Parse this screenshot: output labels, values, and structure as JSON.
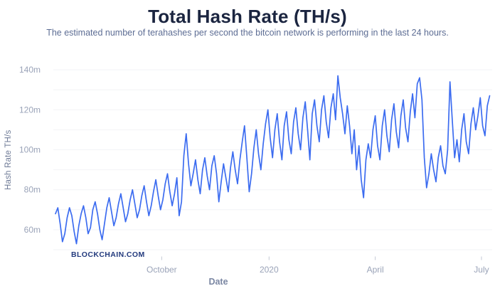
{
  "page": {
    "watermark": "BLOCKCHAIN.COM"
  },
  "colors": {
    "title": "#1b2540",
    "subtitle": "#5d6d94",
    "axis_tick_labels": "#9aa3b8",
    "axis_titles": "#7b87a3",
    "gridline": "#f2f3f6",
    "tick_mark": "#c3c8d4",
    "line": "#3c6cf0",
    "watermark": "#233a7d",
    "background": "#ffffff"
  },
  "chart_data": {
    "type": "line",
    "title": "Total Hash Rate (TH/s)",
    "subtitle": "The estimated number of terahashes per second the bitcoin network is performing in the last 24 hours.",
    "xlabel": "Date",
    "ylabel": "Hash Rate TH/s",
    "legend": "none",
    "grid": true,
    "line_color": "#3c6cf0",
    "y_axis": {
      "min": 50,
      "max": 145,
      "gridline_step": 10,
      "tick_values": [
        60,
        80,
        100,
        120,
        140
      ],
      "tick_labels": [
        "60m",
        "80m",
        "100m",
        "120m",
        "140m"
      ]
    },
    "x_axis": {
      "tick_labels": [
        "October",
        "2020",
        "April",
        "July"
      ],
      "tick_day_offsets": [
        91,
        183,
        274,
        365
      ],
      "total_days": 372,
      "sample_step_days": 2
    },
    "values": [
      68,
      71,
      63,
      54,
      58,
      66,
      71,
      67,
      59,
      53,
      62,
      68,
      72,
      66,
      58,
      61,
      70,
      74,
      68,
      60,
      55,
      63,
      71,
      76,
      69,
      62,
      66,
      73,
      78,
      71,
      64,
      68,
      75,
      80,
      73,
      66,
      70,
      77,
      82,
      74,
      67,
      72,
      79,
      85,
      77,
      70,
      75,
      83,
      88,
      79,
      72,
      78,
      86,
      67,
      74,
      97,
      108,
      93,
      82,
      88,
      95,
      85,
      78,
      90,
      96,
      87,
      80,
      92,
      97,
      88,
      74,
      84,
      93,
      86,
      79,
      91,
      99,
      90,
      83,
      95,
      104,
      112,
      96,
      79,
      88,
      101,
      110,
      98,
      90,
      103,
      113,
      120,
      106,
      96,
      110,
      118,
      104,
      95,
      112,
      119,
      105,
      98,
      114,
      121,
      108,
      100,
      116,
      124,
      110,
      95,
      118,
      125,
      112,
      104,
      120,
      127,
      114,
      106,
      121,
      128,
      115,
      137,
      126,
      118,
      108,
      122,
      112,
      98,
      110,
      90,
      102,
      85,
      76,
      95,
      103,
      96,
      110,
      117,
      102,
      95,
      112,
      120,
      107,
      99,
      115,
      123,
      109,
      101,
      117,
      125,
      111,
      104,
      119,
      128,
      116,
      133,
      136,
      125,
      96,
      81,
      88,
      98,
      90,
      84,
      96,
      102,
      92,
      88,
      100,
      134,
      115,
      96,
      105,
      94,
      110,
      118,
      104,
      98,
      113,
      121,
      110,
      117,
      126,
      112,
      107,
      122,
      127
    ]
  }
}
